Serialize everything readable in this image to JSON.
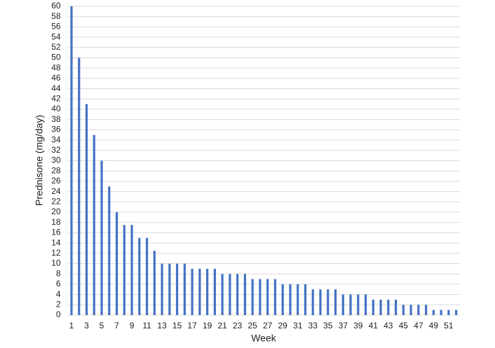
{
  "chart_data": {
    "type": "bar",
    "x_label": "Week",
    "y_label": "Prednisone (mg/day)",
    "categories": [
      "1",
      null,
      "3",
      null,
      "5",
      null,
      "7",
      null,
      "9",
      null,
      "11",
      null,
      "13",
      null,
      "15",
      null,
      "17",
      null,
      "19",
      null,
      "21",
      null,
      "23",
      null,
      "25",
      null,
      "27",
      null,
      "29",
      null,
      "31",
      null,
      "33",
      null,
      "35",
      null,
      "37",
      null,
      "39",
      null,
      "41",
      null,
      "43",
      null,
      "45",
      null,
      "47",
      null,
      "49",
      null,
      "51",
      null
    ],
    "values": [
      60,
      50,
      41,
      35,
      30,
      25,
      20,
      17.5,
      17.5,
      15,
      15,
      12.5,
      10,
      10,
      10,
      10,
      9,
      9,
      9,
      9,
      8,
      8,
      8,
      8,
      7,
      7,
      7,
      7,
      6,
      6,
      6,
      6,
      5,
      5,
      5,
      5,
      4,
      4,
      4,
      4,
      3,
      3,
      3,
      3,
      2,
      2,
      2,
      2,
      1,
      1,
      1,
      1
    ],
    "color": "#4472c4",
    "ylim": [
      0,
      60
    ],
    "yticks": [
      0,
      2,
      4,
      6,
      8,
      10,
      12,
      14,
      16,
      18,
      20,
      22,
      24,
      26,
      28,
      30,
      32,
      34,
      36,
      38,
      40,
      42,
      44,
      46,
      48,
      50,
      52,
      54,
      56,
      58,
      60
    ],
    "grid": true
  }
}
